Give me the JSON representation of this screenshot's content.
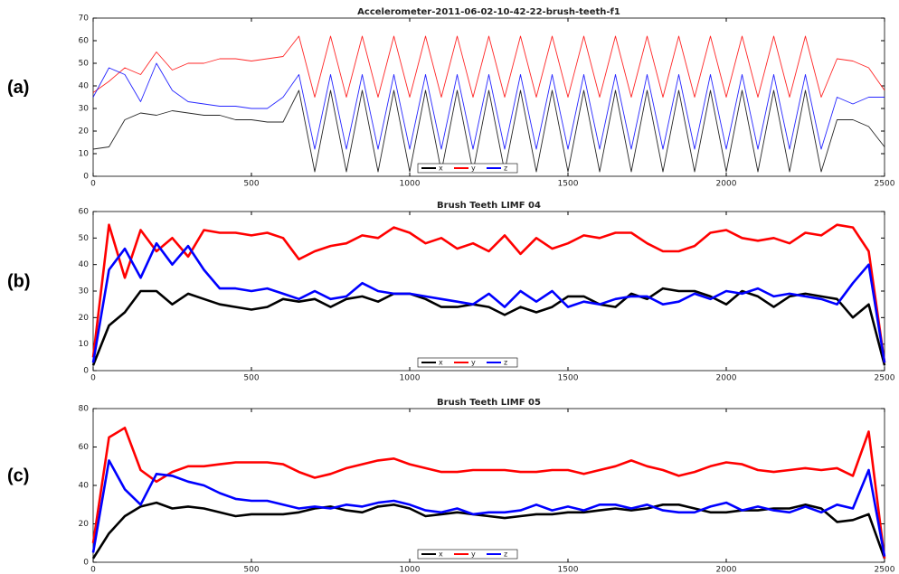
{
  "chart_data": [
    {
      "type": "line",
      "panel_label": "(a)",
      "title": "Accelerometer-2011-06-02-10-42-22-brush-teeth-f1",
      "x": [
        0,
        50,
        100,
        150,
        200,
        250,
        300,
        350,
        400,
        450,
        500,
        550,
        600,
        650,
        700,
        750,
        800,
        850,
        900,
        950,
        1000,
        1050,
        1100,
        1150,
        1200,
        1250,
        1300,
        1350,
        1400,
        1450,
        1500,
        1550,
        1600,
        1650,
        1700,
        1750,
        1800,
        1850,
        1900,
        1950,
        2000,
        2050,
        2100,
        2150,
        2200,
        2250,
        2300,
        2350,
        2400,
        2450,
        2500
      ],
      "xlim": [
        0,
        2500
      ],
      "xticks": [
        0,
        500,
        1000,
        1500,
        2000,
        2500
      ],
      "ylim": [
        0,
        70
      ],
      "yticks": [
        0,
        10,
        20,
        30,
        40,
        50,
        60,
        70
      ],
      "series": [
        {
          "name": "x",
          "color": "#000000",
          "values": [
            12,
            13,
            25,
            28,
            27,
            29,
            28,
            27,
            27,
            25,
            25,
            24,
            24,
            38,
            2,
            38,
            2,
            38,
            2,
            38,
            2,
            38,
            2,
            38,
            2,
            38,
            2,
            38,
            2,
            38,
            2,
            38,
            2,
            38,
            2,
            38,
            2,
            38,
            2,
            38,
            2,
            38,
            2,
            38,
            2,
            38,
            2,
            25,
            25,
            22,
            13
          ]
        },
        {
          "name": "y",
          "color": "#ff0000",
          "values": [
            37,
            42,
            48,
            45,
            55,
            47,
            50,
            50,
            52,
            52,
            51,
            52,
            53,
            62,
            35,
            62,
            35,
            62,
            35,
            62,
            35,
            62,
            35,
            62,
            35,
            62,
            35,
            62,
            35,
            62,
            35,
            62,
            35,
            62,
            35,
            62,
            35,
            62,
            35,
            62,
            35,
            62,
            35,
            62,
            35,
            62,
            35,
            52,
            51,
            48,
            38
          ]
        },
        {
          "name": "z",
          "color": "#0000ff",
          "values": [
            35,
            48,
            45,
            33,
            50,
            38,
            33,
            32,
            31,
            31,
            30,
            30,
            35,
            45,
            12,
            45,
            12,
            45,
            12,
            45,
            12,
            45,
            12,
            45,
            12,
            45,
            12,
            45,
            12,
            45,
            12,
            45,
            12,
            45,
            12,
            45,
            12,
            45,
            12,
            45,
            12,
            45,
            12,
            45,
            12,
            45,
            12,
            35,
            32,
            35,
            35
          ]
        }
      ]
    },
    {
      "type": "line",
      "panel_label": "(b)",
      "title": "Brush Teeth LIMF 04",
      "x": [
        0,
        50,
        100,
        150,
        200,
        250,
        300,
        350,
        400,
        450,
        500,
        550,
        600,
        650,
        700,
        750,
        800,
        850,
        900,
        950,
        1000,
        1050,
        1100,
        1150,
        1200,
        1250,
        1300,
        1350,
        1400,
        1450,
        1500,
        1550,
        1600,
        1650,
        1700,
        1750,
        1800,
        1850,
        1900,
        1950,
        2000,
        2050,
        2100,
        2150,
        2200,
        2250,
        2300,
        2350,
        2400,
        2450,
        2500
      ],
      "xlim": [
        0,
        2500
      ],
      "xticks": [
        0,
        500,
        1000,
        1500,
        2000,
        2500
      ],
      "ylim": [
        0,
        60
      ],
      "yticks": [
        0,
        10,
        20,
        30,
        40,
        50,
        60
      ],
      "series": [
        {
          "name": "x",
          "color": "#000000",
          "values": [
            2,
            17,
            22,
            30,
            30,
            25,
            29,
            27,
            25,
            24,
            23,
            24,
            27,
            26,
            27,
            24,
            27,
            28,
            26,
            29,
            29,
            27,
            24,
            24,
            25,
            24,
            21,
            24,
            22,
            24,
            28,
            28,
            25,
            24,
            29,
            27,
            31,
            30,
            30,
            28,
            25,
            30,
            28,
            24,
            28,
            29,
            28,
            27,
            20,
            25,
            2
          ]
        },
        {
          "name": "y",
          "color": "#ff0000",
          "values": [
            5,
            55,
            35,
            53,
            45,
            50,
            43,
            53,
            52,
            52,
            51,
            52,
            50,
            42,
            45,
            47,
            48,
            51,
            50,
            54,
            52,
            48,
            50,
            46,
            48,
            45,
            51,
            44,
            50,
            46,
            48,
            51,
            50,
            52,
            52,
            48,
            45,
            45,
            47,
            52,
            53,
            50,
            49,
            50,
            48,
            52,
            51,
            55,
            54,
            45,
            3
          ]
        },
        {
          "name": "z",
          "color": "#0000ff",
          "values": [
            3,
            38,
            46,
            35,
            48,
            40,
            47,
            38,
            31,
            31,
            30,
            31,
            29,
            27,
            30,
            27,
            28,
            33,
            30,
            29,
            29,
            28,
            27,
            26,
            25,
            29,
            24,
            30,
            26,
            30,
            24,
            26,
            25,
            27,
            28,
            28,
            25,
            26,
            29,
            27,
            30,
            29,
            31,
            28,
            29,
            28,
            27,
            25,
            33,
            40,
            3
          ]
        }
      ]
    },
    {
      "type": "line",
      "panel_label": "(c)",
      "title": "Brush Teeth LIMF 05",
      "x": [
        0,
        50,
        100,
        150,
        200,
        250,
        300,
        350,
        400,
        450,
        500,
        550,
        600,
        650,
        700,
        750,
        800,
        850,
        900,
        950,
        1000,
        1050,
        1100,
        1150,
        1200,
        1250,
        1300,
        1350,
        1400,
        1450,
        1500,
        1550,
        1600,
        1650,
        1700,
        1750,
        1800,
        1850,
        1900,
        1950,
        2000,
        2050,
        2100,
        2150,
        2200,
        2250,
        2300,
        2350,
        2400,
        2450,
        2500
      ],
      "xlim": [
        0,
        2500
      ],
      "xticks": [
        0,
        500,
        1000,
        1500,
        2000,
        2500
      ],
      "ylim": [
        0,
        80
      ],
      "yticks": [
        0,
        20,
        40,
        60,
        80
      ],
      "series": [
        {
          "name": "x",
          "color": "#000000",
          "values": [
            2,
            15,
            24,
            29,
            31,
            28,
            29,
            28,
            26,
            24,
            25,
            25,
            25,
            26,
            28,
            29,
            27,
            26,
            29,
            30,
            28,
            24,
            25,
            26,
            25,
            24,
            23,
            24,
            25,
            25,
            26,
            26,
            27,
            28,
            27,
            28,
            30,
            30,
            28,
            26,
            26,
            27,
            27,
            28,
            28,
            30,
            28,
            21,
            22,
            25,
            2
          ]
        },
        {
          "name": "y",
          "color": "#ff0000",
          "values": [
            10,
            65,
            70,
            48,
            42,
            47,
            50,
            50,
            51,
            52,
            52,
            52,
            51,
            47,
            44,
            46,
            49,
            51,
            53,
            54,
            51,
            49,
            47,
            47,
            48,
            48,
            48,
            47,
            47,
            48,
            48,
            46,
            48,
            50,
            53,
            50,
            48,
            45,
            47,
            50,
            52,
            51,
            48,
            47,
            48,
            49,
            48,
            49,
            45,
            68,
            2
          ]
        },
        {
          "name": "z",
          "color": "#0000ff",
          "values": [
            5,
            53,
            38,
            30,
            46,
            45,
            42,
            40,
            36,
            33,
            32,
            32,
            30,
            28,
            29,
            28,
            30,
            29,
            31,
            32,
            30,
            27,
            26,
            28,
            25,
            26,
            26,
            27,
            30,
            27,
            29,
            27,
            30,
            30,
            28,
            30,
            27,
            26,
            26,
            29,
            31,
            27,
            29,
            27,
            26,
            29,
            26,
            30,
            28,
            48,
            3
          ]
        }
      ]
    }
  ]
}
